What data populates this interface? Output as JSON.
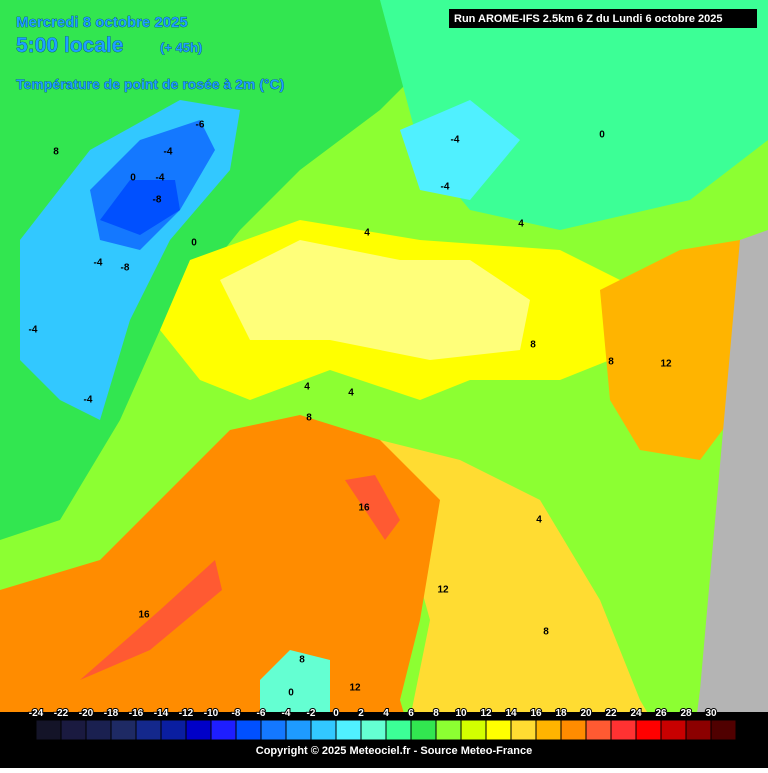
{
  "header": {
    "date": "Mercredi 8 octobre 2025",
    "time": "5:00 locale",
    "lead": "(+ 45h)",
    "parameter": "Température de point de rosée à 2m (°C)",
    "run": "Run AROME-IFS 2.5km 6 Z du Lundi 6 octobre 2025"
  },
  "legend": {
    "ticks": [
      -24,
      -22,
      -20,
      -18,
      -16,
      -14,
      -12,
      -10,
      -8,
      -6,
      -4,
      -2,
      0,
      2,
      4,
      6,
      8,
      10,
      12,
      14,
      16,
      18,
      20,
      22,
      24,
      26,
      28,
      30
    ],
    "colors": [
      "#141428",
      "#1a1a40",
      "#1a2050",
      "#1e2a64",
      "#14288c",
      "#0a1ea0",
      "#0000c8",
      "#1e1eff",
      "#0050ff",
      "#1478ff",
      "#1e9bff",
      "#32c8ff",
      "#50f0ff",
      "#64ffd2",
      "#3cff96",
      "#32e650",
      "#8cff32",
      "#d2ff00",
      "#ffff00",
      "#ffdc32",
      "#ffb400",
      "#ff8c00",
      "#ff5a32",
      "#ff3232",
      "#ff0000",
      "#c80000",
      "#8c0000",
      "#500000"
    ]
  },
  "contour_labels": [
    "-6",
    "-4",
    "0",
    "-4",
    "-8",
    "-4",
    "-8",
    "0",
    "-4",
    "-4",
    "8",
    "0",
    "-4",
    "-4",
    "4",
    "4",
    "8",
    "8",
    "12",
    "4",
    "4",
    "8",
    "16",
    "4",
    "12",
    "16",
    "8",
    "8",
    "12",
    "0"
  ],
  "footer": "Copyright © 2025 Meteociel.fr - Source Meteo-France"
}
